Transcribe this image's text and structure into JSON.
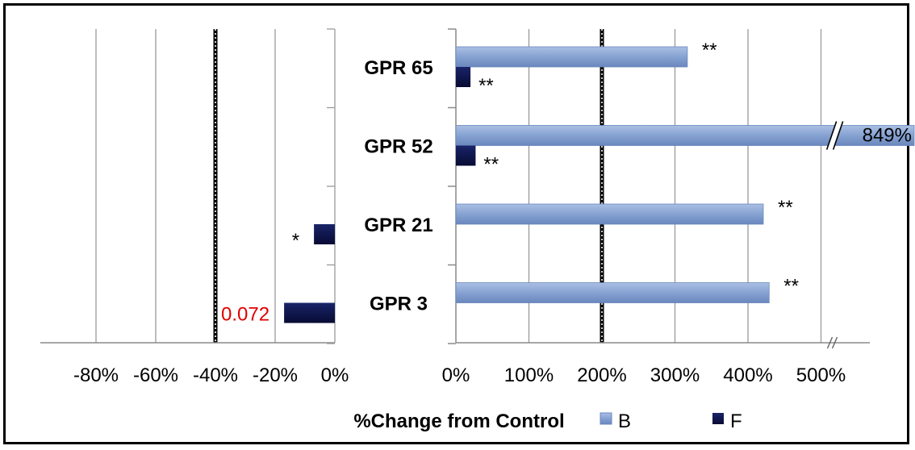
{
  "chart_data": {
    "type": "bar",
    "orientation": "horizontal",
    "xlabel": "%Change from Control",
    "categories": [
      "GPR 3",
      "GPR 21",
      "GPR 52",
      "GPR 65"
    ],
    "panels": [
      {
        "name": "decrease",
        "xlim": [
          -90,
          0
        ],
        "ticks": [
          -80,
          -60,
          -40,
          -20,
          0
        ],
        "tick_labels": [
          "-80%",
          "-60%",
          "-40%",
          "-20%",
          "0%"
        ],
        "reference_line": -40
      },
      {
        "name": "increase",
        "xlim": [
          0,
          530
        ],
        "ticks": [
          0,
          100,
          200,
          300,
          400,
          500
        ],
        "tick_labels": [
          "0%",
          "100%",
          "200%",
          "300%",
          "400%",
          "500%"
        ],
        "reference_line": 200,
        "axis_break": true
      }
    ],
    "series": [
      {
        "name": "B",
        "color": "#7b97c9",
        "values": [
          429,
          421,
          849,
          317
        ],
        "significance": [
          "**",
          "**",
          "",
          "**"
        ],
        "value_labels": [
          "",
          "",
          "849%",
          ""
        ]
      },
      {
        "name": "F",
        "color": "#0c1246",
        "values": [
          -17,
          -7,
          27,
          20
        ],
        "significance": [
          "",
          "*",
          "**",
          "**"
        ],
        "annotations": [
          "0.072",
          "",
          "",
          ""
        ]
      }
    ],
    "annotation_color": "#e00000",
    "legend": {
      "position": "bottom",
      "entries": [
        "B",
        "F"
      ]
    }
  }
}
